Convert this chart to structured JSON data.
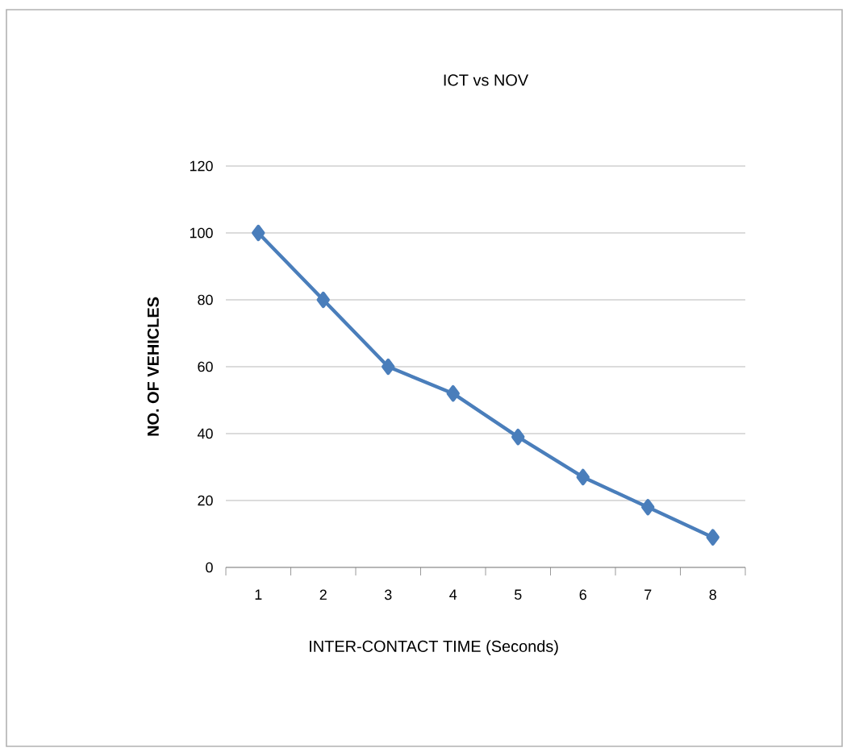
{
  "chart_data": {
    "type": "line",
    "title": "ICT vs NOV",
    "xlabel": "INTER-CONTACT TIME (Seconds)",
    "ylabel": "NO. OF VEHICLES",
    "categories": [
      "1",
      "2",
      "3",
      "4",
      "5",
      "6",
      "7",
      "8"
    ],
    "series": [
      {
        "color": "#4a7ebb",
        "values": [
          100,
          80,
          60,
          52,
          39,
          27,
          18,
          9
        ]
      }
    ],
    "ylim": [
      0,
      120
    ],
    "yticks": [
      0,
      20,
      40,
      60,
      80,
      100,
      120
    ],
    "grid": "y",
    "marker": "diamond",
    "line_style": "solid"
  }
}
